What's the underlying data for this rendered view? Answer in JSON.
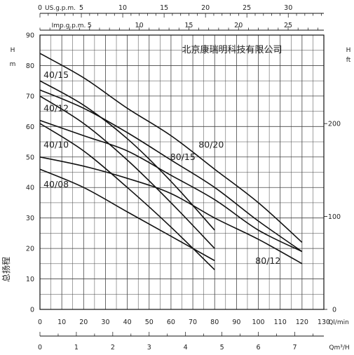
{
  "chart_data": {
    "type": "line",
    "title": "北京康瑞明科技有限公司",
    "grid": true,
    "x_axis": {
      "label": "Ql/min",
      "range": [
        0,
        130
      ],
      "ticks": [
        0,
        10,
        20,
        30,
        40,
        50,
        60,
        70,
        80,
        90,
        100,
        110,
        120,
        130
      ]
    },
    "x_axis_m3h": {
      "label": "Qm³/H",
      "range": [
        0,
        7.8
      ],
      "ticks": [
        0,
        1,
        2,
        3,
        4,
        5,
        6,
        7
      ]
    },
    "x_axis_us": {
      "label": "US.g.p.m.",
      "range": [
        0,
        34.3
      ],
      "ticks": [
        0,
        5,
        10,
        15,
        20,
        25,
        30
      ]
    },
    "x_axis_imp": {
      "label": "Imp.g.p.m.",
      "range": [
        0,
        28.6
      ],
      "ticks": [
        5,
        10,
        15,
        20,
        25
      ]
    },
    "y_axis": {
      "label": "H",
      "unit": "m",
      "side_label": "总扬程",
      "range": [
        0,
        90
      ],
      "ticks": [
        0,
        10,
        20,
        30,
        40,
        50,
        60,
        70,
        80,
        90
      ]
    },
    "y_axis_ft": {
      "label": "H",
      "unit": "ft",
      "range": [
        0,
        295.3
      ],
      "ticks": [
        0,
        100,
        200
      ]
    },
    "series": [
      {
        "name": "40/15",
        "x": [
          0,
          20,
          40,
          60,
          80
        ],
        "y": [
          75,
          67,
          56,
          42,
          26
        ]
      },
      {
        "name": "40/12",
        "x": [
          0,
          20,
          40,
          60,
          80
        ],
        "y": [
          70,
          61,
          49,
          35,
          20
        ]
      },
      {
        "name": "40/10",
        "x": [
          0,
          20,
          40,
          60,
          80
        ],
        "y": [
          61,
          52,
          40,
          27,
          13
        ]
      },
      {
        "name": "40/08",
        "x": [
          0,
          20,
          40,
          60,
          80
        ],
        "y": [
          46,
          40,
          32,
          24,
          16
        ]
      },
      {
        "name": "80/20",
        "x": [
          0,
          20,
          40,
          60,
          80,
          100,
          120
        ],
        "y": [
          84,
          76,
          66,
          57,
          46,
          35,
          22
        ]
      },
      {
        "name": "80/15",
        "x": [
          0,
          20,
          40,
          60,
          80,
          100,
          120
        ],
        "y": [
          72,
          66,
          58,
          49,
          40,
          29,
          19
        ]
      },
      {
        "name": "80/12",
        "x": [
          0,
          20,
          40,
          60,
          80,
          100,
          120
        ],
        "y": [
          50,
          47,
          43,
          38,
          30,
          23,
          15
        ]
      },
      {
        "name": "",
        "x": [
          0,
          20,
          40,
          60,
          80,
          100,
          120
        ],
        "y": [
          62,
          57,
          52,
          44,
          36,
          26,
          19
        ]
      }
    ],
    "labels": [
      {
        "text": "40/15",
        "x": 1,
        "y": 76
      },
      {
        "text": "40/12",
        "x": 1,
        "y": 65
      },
      {
        "text": "40/10",
        "x": 1,
        "y": 53
      },
      {
        "text": "40/08",
        "x": 1,
        "y": 40
      },
      {
        "text": "80/20",
        "x": 72,
        "y": 53
      },
      {
        "text": "80/15",
        "x": 59,
        "y": 49
      },
      {
        "text": "80/12",
        "x": 98,
        "y": 15
      }
    ]
  }
}
